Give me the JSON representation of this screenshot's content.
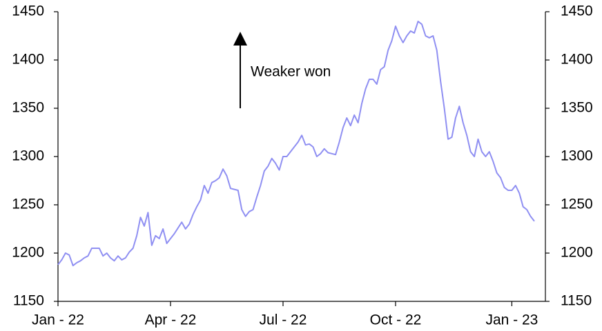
{
  "chart_data": {
    "type": "line",
    "annotation": "Weaker won",
    "categories": [
      "Jan - 22",
      null,
      null,
      null,
      null,
      null,
      null,
      null,
      null,
      null,
      null,
      null,
      null,
      null,
      null,
      null,
      null,
      null,
      null,
      null,
      null,
      null,
      null,
      null,
      null,
      null,
      null,
      null,
      null,
      null,
      "Apr - 22",
      null,
      null,
      null,
      null,
      null,
      null,
      null,
      null,
      null,
      null,
      null,
      null,
      null,
      null,
      null,
      null,
      null,
      null,
      null,
      null,
      null,
      null,
      null,
      null,
      null,
      null,
      null,
      null,
      null,
      "Jul - 22",
      null,
      null,
      null,
      null,
      null,
      null,
      null,
      null,
      null,
      null,
      null,
      null,
      null,
      null,
      null,
      null,
      null,
      null,
      null,
      null,
      null,
      null,
      null,
      null,
      null,
      null,
      null,
      null,
      null,
      "Oct - 22",
      null,
      null,
      null,
      null,
      null,
      null,
      null,
      null,
      null,
      null,
      null,
      null,
      null,
      null,
      null,
      null,
      null,
      null,
      null,
      null,
      null,
      null,
      null,
      null,
      null,
      null,
      null,
      null,
      null,
      null,
      "Jan - 23",
      null,
      null,
      null,
      null,
      null,
      null
    ],
    "series": [
      {
        "color": "#8f8ff2",
        "values": [
          1188,
          1193,
          1200,
          1198,
          1187,
          1190,
          1192,
          1195,
          1197,
          1205,
          1205,
          1205,
          1197,
          1200,
          1195,
          1192,
          1197,
          1193,
          1195,
          1201,
          1205,
          1218,
          1237,
          1228,
          1242,
          1208,
          1218,
          1215,
          1225,
          1210,
          1215,
          1220,
          1226,
          1232,
          1225,
          1230,
          1240,
          1248,
          1255,
          1270,
          1262,
          1273,
          1275,
          1278,
          1287,
          1280,
          1267,
          1266,
          1265,
          1245,
          1238,
          1243,
          1245,
          1258,
          1270,
          1285,
          1290,
          1298,
          1293,
          1286,
          1300,
          1300,
          1305,
          1310,
          1315,
          1322,
          1312,
          1313,
          1310,
          1300,
          1303,
          1308,
          1304,
          1303,
          1302,
          1315,
          1330,
          1340,
          1332,
          1343,
          1335,
          1355,
          1370,
          1380,
          1380,
          1375,
          1390,
          1393,
          1410,
          1420,
          1435,
          1425,
          1418,
          1425,
          1430,
          1428,
          1440,
          1437,
          1425,
          1423,
          1425,
          1410,
          1378,
          1350,
          1318,
          1320,
          1340,
          1352,
          1335,
          1322,
          1305,
          1300,
          1318,
          1305,
          1300,
          1305,
          1295,
          1283,
          1278,
          1268,
          1265,
          1265,
          1270,
          1262,
          1248,
          1245,
          1238,
          1233
        ]
      }
    ],
    "ylim": [
      1150,
      1450
    ],
    "yticks": [
      1150,
      1200,
      1250,
      1300,
      1350,
      1400,
      1450
    ],
    "y2lim": [
      1150,
      1450
    ],
    "y2ticks": [
      1150,
      1200,
      1250,
      1300,
      1350,
      1400,
      1450
    ]
  }
}
